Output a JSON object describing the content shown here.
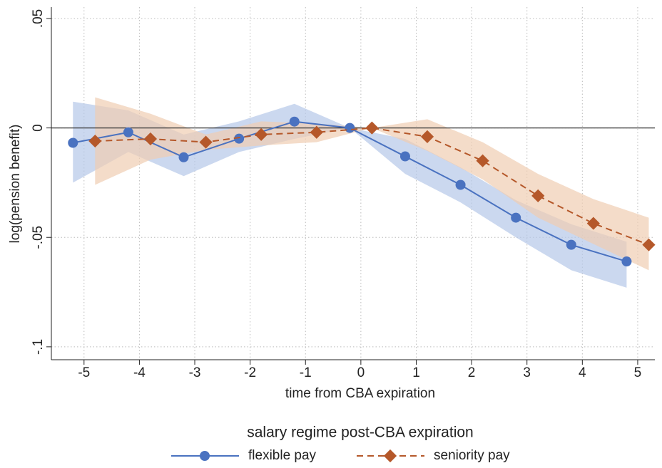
{
  "chart_data": {
    "type": "line",
    "x_label": "time from CBA expiration",
    "y_label": "log(pension benefit)",
    "legend_title": "salary regime post-CBA expiration",
    "xlim": [
      -5.59,
      5.31
    ],
    "ylim": [
      -0.1059,
      0.0552
    ],
    "xticks": [
      -5,
      -4,
      -3,
      -2,
      -1,
      0,
      1,
      2,
      3,
      4,
      5
    ],
    "yticks": [
      {
        "value": 0.05,
        "label": ".05"
      },
      0,
      {
        "value": -0.05,
        "label": "-.05"
      },
      {
        "value": -0.1,
        "label": "-.1"
      }
    ],
    "grid": true,
    "reference_line": 0,
    "series": [
      {
        "name": "flexible pay",
        "color": "#4a72c0",
        "band_color": "#b5c8e8",
        "marker": "circle",
        "dash": false,
        "x": [
          -5.2,
          -4.2,
          -3.2,
          -2.2,
          -1.2,
          -0.2,
          0.8,
          1.8,
          2.8,
          3.8,
          4.8
        ],
        "values": [
          -0.0068,
          -0.002,
          -0.0134,
          -0.0049,
          0.0029,
          0,
          -0.013,
          -0.026,
          -0.041,
          -0.0534,
          -0.061
        ],
        "lower": [
          -0.025,
          -0.011,
          -0.022,
          -0.011,
          -0.005,
          0,
          -0.021,
          -0.034,
          -0.05,
          -0.065,
          -0.073
        ],
        "upper": [
          0.012,
          0.008,
          -0.003,
          0.003,
          0.011,
          0,
          -0.005,
          -0.018,
          -0.033,
          -0.044,
          -0.052
        ]
      },
      {
        "name": "seniority pay",
        "color": "#b5582a",
        "band_color": "#f0cdb2",
        "marker": "diamond",
        "dash": true,
        "x": [
          -4.8,
          -3.8,
          -2.8,
          -1.8,
          -0.8,
          0.2,
          1.2,
          2.2,
          3.2,
          4.2,
          5.2
        ],
        "values": [
          -0.006,
          -0.005,
          -0.0065,
          -0.003,
          -0.002,
          0,
          -0.004,
          -0.015,
          -0.031,
          -0.0436,
          -0.0534
        ],
        "lower": [
          -0.026,
          -0.0145,
          -0.01,
          -0.008,
          -0.0065,
          0,
          -0.0105,
          -0.0235,
          -0.041,
          -0.053,
          -0.065
        ],
        "upper": [
          0.014,
          0.0065,
          -0.003,
          0.003,
          0.002,
          0,
          0.004,
          -0.0065,
          -0.021,
          -0.0325,
          -0.041
        ]
      }
    ]
  }
}
